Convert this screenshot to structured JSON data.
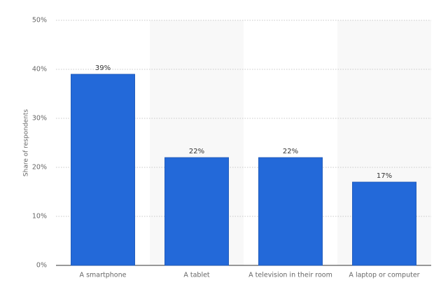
{
  "chart_data": {
    "type": "bar",
    "y_axis_label": "Share of respondents",
    "categories": [
      "A smartphone",
      "A tablet",
      "A television in their room",
      "A laptop or computer"
    ],
    "values": [
      39,
      22,
      22,
      17
    ],
    "value_labels": [
      "39%",
      "22%",
      "22%",
      "17%"
    ],
    "color": "#2369d9",
    "ylim": [
      0,
      50
    ],
    "yticks": [
      {
        "value": 0,
        "label": "0%"
      },
      {
        "value": 10,
        "label": "10%"
      },
      {
        "value": 20,
        "label": "20%"
      },
      {
        "value": 30,
        "label": "30%"
      },
      {
        "value": 40,
        "label": "40%"
      },
      {
        "value": 50,
        "label": "50%"
      }
    ],
    "grid": true
  }
}
